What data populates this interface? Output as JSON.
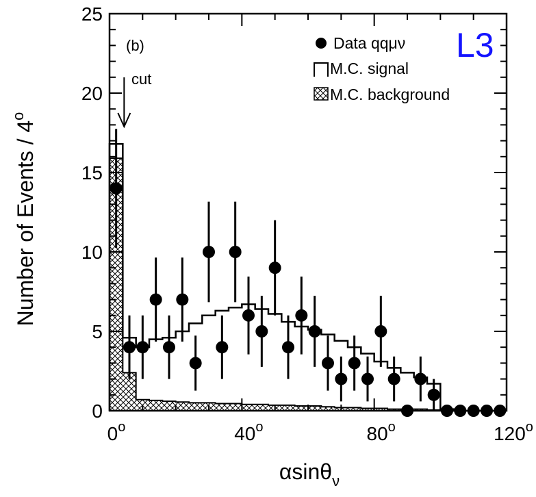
{
  "chart_data": {
    "type": "histogram",
    "panel_label": "(b)",
    "logo": "L3",
    "xlabel": "αsinθ",
    "xlabel_sub": "ν",
    "ylabel": "Number of Events / 4",
    "ylabel_sup": "o",
    "xlim": [
      0,
      120
    ],
    "ylim": [
      0,
      25
    ],
    "bin_width": 4,
    "x_ticks": [
      {
        "value": 0,
        "label": "0",
        "sup": "o"
      },
      {
        "value": 40,
        "label": "40",
        "sup": "o"
      },
      {
        "value": 80,
        "label": "80",
        "sup": "o"
      },
      {
        "value": 120,
        "label": "120",
        "sup": "o"
      }
    ],
    "y_ticks": [
      {
        "value": 0,
        "label": "0"
      },
      {
        "value": 5,
        "label": "5"
      },
      {
        "value": 10,
        "label": "10"
      },
      {
        "value": 15,
        "label": "15"
      },
      {
        "value": 20,
        "label": "20"
      },
      {
        "value": 25,
        "label": "25"
      }
    ],
    "cut": {
      "x": 4,
      "label": "cut"
    },
    "legend": [
      {
        "key": "data",
        "label": "Data qqμν"
      },
      {
        "key": "signal",
        "label": "M.C. signal"
      },
      {
        "key": "background",
        "label": "M.C. background"
      }
    ],
    "bin_edges": [
      0,
      4,
      8,
      12,
      16,
      20,
      24,
      28,
      32,
      36,
      40,
      44,
      48,
      52,
      56,
      60,
      64,
      68,
      72,
      76,
      80,
      84,
      88,
      92,
      96,
      100,
      104,
      108,
      112,
      116,
      120
    ],
    "mc_total": [
      16.8,
      4.6,
      4.0,
      4.5,
      4.6,
      5.0,
      5.5,
      6.0,
      6.3,
      6.5,
      6.7,
      6.4,
      6.1,
      5.6,
      5.3,
      5.1,
      4.8,
      4.4,
      4.0,
      3.6,
      3.1,
      2.7,
      2.4,
      2.1,
      1.7,
      0.1,
      0,
      0,
      0,
      0
    ],
    "mc_background": [
      15.9,
      2.4,
      0.7,
      0.65,
      0.6,
      0.55,
      0.5,
      0.5,
      0.45,
      0.45,
      0.4,
      0.4,
      0.35,
      0.35,
      0.3,
      0.3,
      0.25,
      0.2,
      0.2,
      0.15,
      0.15,
      0.1,
      0.1,
      0.1,
      0.05,
      0,
      0,
      0,
      0,
      0
    ],
    "data": {
      "x": [
        2,
        6,
        10,
        14,
        18,
        22,
        26,
        30,
        34,
        38,
        42,
        46,
        50,
        54,
        58,
        62,
        66,
        70,
        74,
        78,
        82,
        86,
        90,
        94,
        98,
        102,
        106,
        110,
        114,
        118
      ],
      "y": [
        14,
        4,
        4,
        7,
        4,
        7,
        3,
        10,
        4,
        10,
        6,
        5,
        9,
        4,
        6,
        5,
        3,
        2,
        3,
        2,
        5,
        2,
        0,
        2,
        1,
        0,
        0,
        0,
        0,
        0
      ]
    }
  }
}
